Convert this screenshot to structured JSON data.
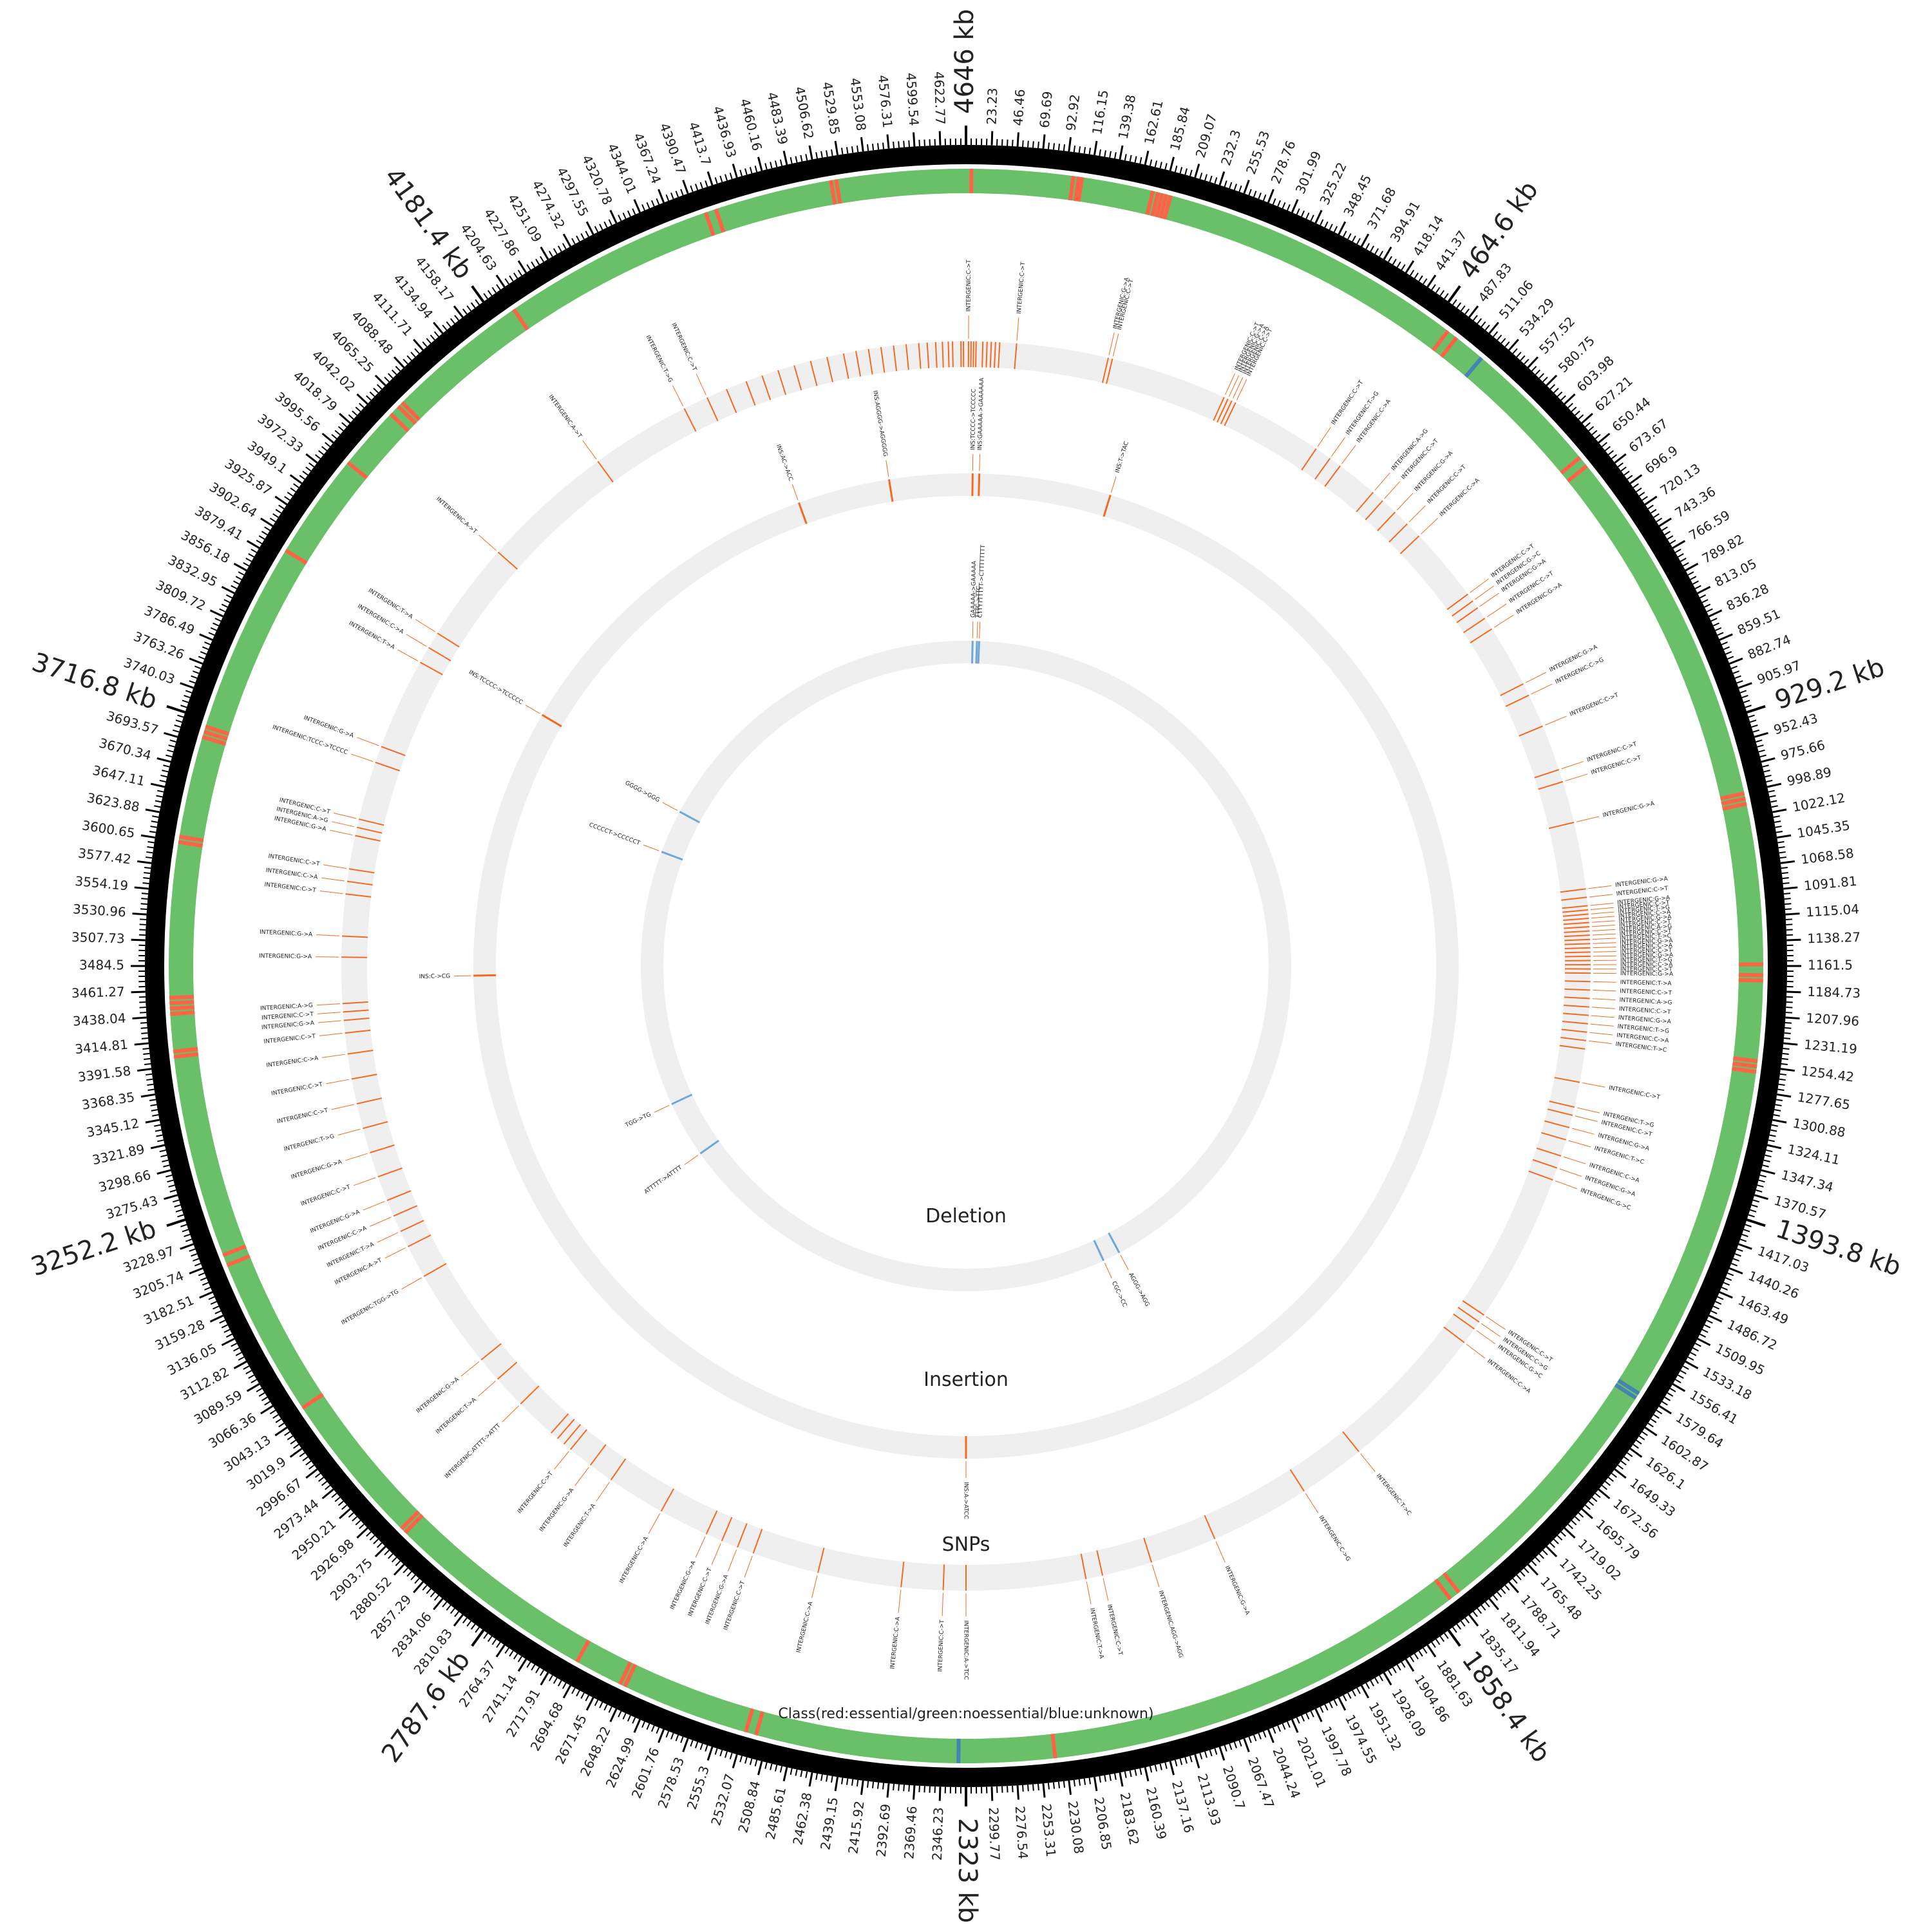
{
  "genome": {
    "length_kb": 4646,
    "major_ticks_kb": [
      "4646 kb",
      "464.6 kb",
      "929.2 kb",
      "1393.8 kb",
      "1858.4 kb",
      "2323 kb",
      "2787.6 kb",
      "3252.2 kb",
      "3716.8 kb",
      "4181.4 kb"
    ],
    "minor_tick_labels": [
      "23.23",
      "46.46",
      "69.69",
      "92.92",
      "116.15",
      "139.38",
      "162.61",
      "185.84",
      "209.07",
      "232.3",
      "255.53",
      "278.76",
      "301.99",
      "325.22",
      "348.45",
      "371.68",
      "394.91",
      "418.14",
      "441.37",
      "487.83",
      "511.06",
      "534.29",
      "557.52",
      "580.75",
      "603.98",
      "627.21",
      "650.44",
      "673.67",
      "696.9",
      "720.13",
      "743.36",
      "766.59",
      "789.82",
      "813.05",
      "836.28",
      "859.51",
      "882.74",
      "905.97",
      "952.43",
      "975.66",
      "998.89",
      "1022.12",
      "1045.35",
      "1068.58",
      "1091.81",
      "1115.04",
      "1138.27",
      "1161.5",
      "1184.73",
      "1207.96",
      "1231.19",
      "1254.42",
      "1277.65",
      "1300.88",
      "1324.11",
      "1347.34",
      "1370.57",
      "1417.03",
      "1440.26",
      "1463.49",
      "1486.72",
      "1509.95",
      "1533.18",
      "1556.41",
      "1579.64",
      "1602.87",
      "1626.1",
      "1649.33",
      "1672.56",
      "1695.79",
      "1719.02",
      "1742.25",
      "1765.48",
      "1788.71",
      "1811.94",
      "1835.17",
      "1881.63",
      "1904.86",
      "1928.09",
      "1951.32",
      "1974.55",
      "1997.78",
      "2021.01",
      "2044.24",
      "2067.47",
      "2090.7",
      "2113.93",
      "2137.16",
      "2160.39",
      "2183.62",
      "2206.85",
      "2230.08",
      "2253.31",
      "2276.54",
      "2299.77",
      "2346.23",
      "2369.46",
      "2392.69",
      "2415.92",
      "2439.15",
      "2462.38",
      "2485.61",
      "2508.84",
      "2532.07",
      "2555.3",
      "2578.53",
      "2601.76",
      "2624.99",
      "2648.22",
      "2671.45",
      "2694.68",
      "2717.91",
      "2741.14",
      "2764.37",
      "2810.83",
      "2834.06",
      "2857.29",
      "2880.52",
      "2903.75",
      "2926.98",
      "2950.21",
      "2973.44",
      "2996.67",
      "3019.9",
      "3043.13",
      "3066.36",
      "3089.59",
      "3112.82",
      "3136.05",
      "3159.28",
      "3182.51",
      "3205.74",
      "3228.97",
      "3275.43",
      "3298.66",
      "3321.89",
      "3345.12",
      "3368.35",
      "3391.58",
      "3414.81",
      "3438.04",
      "3461.27",
      "3484.5",
      "3507.73",
      "3530.96",
      "3554.19",
      "3577.42",
      "3600.65",
      "3623.88",
      "3647.11",
      "3670.34",
      "3693.57",
      "3740.03",
      "3763.26",
      "3786.49",
      "3809.72",
      "3832.95",
      "3856.18",
      "3879.41",
      "3902.64",
      "3925.87",
      "3949.1",
      "3972.33",
      "3995.56",
      "4018.79",
      "4042.02",
      "4065.25",
      "4088.48",
      "4111.71",
      "4134.94",
      "4158.17",
      "4204.63",
      "4227.86",
      "4251.09",
      "4274.32",
      "4297.55",
      "4320.78",
      "4344.01",
      "4367.24",
      "4390.47",
      "4413.7",
      "4436.93",
      "4460.16",
      "4483.39",
      "4506.62",
      "4529.85",
      "4553.08",
      "4576.31",
      "4599.54",
      "4622.77"
    ]
  },
  "tracks": {
    "class_label": "Class(red:essential/green:noessential/blue:unknown)",
    "snps_label": "SNPs",
    "insertion_label": "Insertion",
    "deletion_label": "Deletion"
  },
  "colors": {
    "essential": "#ff6347",
    "noessential": "#6abf69",
    "unknown": "#4682b4",
    "snp": "#f26b21",
    "insertion": "#f26b21",
    "deletion": "#6fa8d8",
    "track_bg": "#efefef",
    "ideogram": "#000000"
  },
  "class_features": {
    "essential_kb": [
      5,
      100,
      105,
      108,
      175,
      180,
      184,
      188,
      192,
      480,
      490,
      650,
      660,
      1000,
      1005,
      1010,
      1160,
      1170,
      1175,
      1250,
      1255,
      1260,
      1830,
      1840,
      2240,
      2520,
      2530,
      2650,
      2655,
      2700,
      2900,
      2905,
      3050,
      3200,
      3210,
      3400,
      3405,
      3440,
      3445,
      3450,
      3455,
      3600,
      3605,
      3700,
      3705,
      3710,
      3890,
      3990,
      4050,
      4060,
      4065,
      4200,
      4400,
      4410,
      4520,
      4525
    ],
    "unknown_kb": [
      520,
      1580,
      1585,
      2330
    ]
  },
  "snps": [
    {
      "pos": 4640,
      "label": ""
    },
    {
      "pos": 4643,
      "label": ""
    },
    {
      "pos": 3,
      "label": "INTERGENIC:C->T"
    },
    {
      "pos": 6,
      "label": ""
    },
    {
      "pos": 9,
      "label": ""
    },
    {
      "pos": 12,
      "label": ""
    },
    {
      "pos": 4630,
      "label": ""
    },
    {
      "pos": 4625,
      "label": ""
    },
    {
      "pos": 4618,
      "label": ""
    },
    {
      "pos": 4610,
      "label": ""
    },
    {
      "pos": 4600,
      "label": ""
    },
    {
      "pos": 4590,
      "label": ""
    },
    {
      "pos": 4575,
      "label": ""
    },
    {
      "pos": 4560,
      "label": ""
    },
    {
      "pos": 4545,
      "label": ""
    },
    {
      "pos": 4530,
      "label": ""
    },
    {
      "pos": 4515,
      "label": ""
    },
    {
      "pos": 4500,
      "label": ""
    },
    {
      "pos": 4480,
      "label": ""
    },
    {
      "pos": 4460,
      "label": ""
    },
    {
      "pos": 4440,
      "label": ""
    },
    {
      "pos": 4420,
      "label": ""
    },
    {
      "pos": 4400,
      "label": ""
    },
    {
      "pos": 4380,
      "label": ""
    },
    {
      "pos": 4355,
      "label": ""
    },
    {
      "pos": 4330,
      "label": "INTERGENIC:C->T"
    },
    {
      "pos": 4300,
      "label": "INTERGENIC:T->G"
    },
    {
      "pos": 4180,
      "label": "INTERGENIC:A->T"
    },
    {
      "pos": 4020,
      "label": "INTERGENIC:A->T"
    },
    {
      "pos": 3900,
      "label": "INTERGENIC:T->A"
    },
    {
      "pos": 3880,
      "label": "INTERGENIC:C->A"
    },
    {
      "pos": 3860,
      "label": "INTERGENIC:T->A"
    },
    {
      "pos": 3750,
      "label": "INTERGENIC:G->A"
    },
    {
      "pos": 3730,
      "label": "INTERGENIC:TCCC->TCCCC"
    },
    {
      "pos": 3660,
      "label": "INTERGENIC:C->T"
    },
    {
      "pos": 3650,
      "label": "INTERGENIC:A->G"
    },
    {
      "pos": 3640,
      "label": "INTERGENIC:G->A"
    },
    {
      "pos": 3600,
      "label": "INTERGENIC:C->T"
    },
    {
      "pos": 3585,
      "label": "INTERGENIC:C->A"
    },
    {
      "pos": 3570,
      "label": "INTERGENIC:C->T"
    },
    {
      "pos": 3520,
      "label": "INTERGENIC:G->A"
    },
    {
      "pos": 3495,
      "label": "INTERGENIC:G->A"
    },
    {
      "pos": 3440,
      "label": "INTERGENIC:A->G"
    },
    {
      "pos": 3430,
      "label": "INTERGENIC:C->T"
    },
    {
      "pos": 3420,
      "label": "INTERGENIC:G->A"
    },
    {
      "pos": 3405,
      "label": "INTERGENIC:C->T"
    },
    {
      "pos": 3380,
      "label": "INTERGENIC:C->A"
    },
    {
      "pos": 3350,
      "label": "INTERGENIC:C->T"
    },
    {
      "pos": 3320,
      "label": "INTERGENIC:C->T"
    },
    {
      "pos": 3290,
      "label": "INTERGENIC:T->G"
    },
    {
      "pos": 3260,
      "label": "INTERGENIC:G->A"
    },
    {
      "pos": 3230,
      "label": "INTERGENIC:C->T"
    },
    {
      "pos": 3200,
      "label": "INTERGENIC:G->A"
    },
    {
      "pos": 3180,
      "label": "INTERGENIC:C->A"
    },
    {
      "pos": 3160,
      "label": "INTERGENIC:T->A"
    },
    {
      "pos": 3140,
      "label": "INTERGENIC:A->T"
    },
    {
      "pos": 3100,
      "label": "INTERGENIC:TGG->TG"
    },
    {
      "pos": 2980,
      "label": "INTERGENIC:G->A"
    },
    {
      "pos": 2950,
      "label": "INTERGENIC:T->A"
    },
    {
      "pos": 2910,
      "label": "INTERGENIC:ATTTT->ATTT"
    },
    {
      "pos": 2860,
      "label": ""
    },
    {
      "pos": 2850,
      "label": ""
    },
    {
      "pos": 2840,
      "label": ""
    },
    {
      "pos": 2830,
      "label": "INTERGENIC:C->T"
    },
    {
      "pos": 2800,
      "label": "INTERGENIC:G->A"
    },
    {
      "pos": 2770,
      "label": "INTERGENIC:T->A"
    },
    {
      "pos": 2700,
      "label": "INTERGENIC:C->A"
    },
    {
      "pos": 2640,
      "label": "INTERGENIC:G->A"
    },
    {
      "pos": 2620,
      "label": "INTERGENIC:C->T"
    },
    {
      "pos": 2600,
      "label": "INTERGENIC:G->A"
    },
    {
      "pos": 2580,
      "label": "INTERGENIC:C->T"
    },
    {
      "pos": 2500,
      "label": "INTERGENIC:C->A"
    },
    {
      "pos": 2400,
      "label": "INTERGENIC:C->A"
    },
    {
      "pos": 2350,
      "label": "INTERGENIC:C->T"
    },
    {
      "pos": 2323,
      "label": "INTERGENIC:A->TCC"
    },
    {
      "pos": 2180,
      "label": "INTERGENIC:T->A"
    },
    {
      "pos": 2160,
      "label": "INTERGENIC:C->T"
    },
    {
      "pos": 2100,
      "label": "INTERGENIC:AGG->AGG"
    },
    {
      "pos": 2020,
      "label": "INTERGENIC:G->A"
    },
    {
      "pos": 1900,
      "label": "INTERGENIC:C->G"
    },
    {
      "pos": 1820,
      "label": "INTERGENIC:T->C"
    },
    {
      "pos": 1640,
      "label": "INTERGENIC:C->A"
    },
    {
      "pos": 1620,
      "label": "INTERGENIC:G->C"
    },
    {
      "pos": 1610,
      "label": "INTERGENIC:C->G"
    },
    {
      "pos": 1600,
      "label": "INTERGENIC:C->T"
    },
    {
      "pos": 1420,
      "label": "INTERGENIC:G->C"
    },
    {
      "pos": 1405,
      "label": "INTERGENIC:G->A"
    },
    {
      "pos": 1390,
      "label": "INTERGENIC:C->A"
    },
    {
      "pos": 1370,
      "label": "INTERGENIC:T->C"
    },
    {
      "pos": 1355,
      "label": "INTERGENIC:G->A"
    },
    {
      "pos": 1340,
      "label": "INTERGENIC:C->T"
    },
    {
      "pos": 1330,
      "label": "INTERGENIC:T->G"
    },
    {
      "pos": 1300,
      "label": "INTERGENIC:C->T"
    },
    {
      "pos": 1260,
      "label": ""
    },
    {
      "pos": 1250,
      "label": "INTERGENIC:T->C"
    },
    {
      "pos": 1240,
      "label": "INTERGENIC:C->A"
    },
    {
      "pos": 1230,
      "label": "INTERGENIC:T->G"
    },
    {
      "pos": 1220,
      "label": "INTERGENIC:G->A"
    },
    {
      "pos": 1210,
      "label": "INTERGENIC:C->T"
    },
    {
      "pos": 1200,
      "label": "INTERGENIC:A->G"
    },
    {
      "pos": 1190,
      "label": "INTERGENIC:C->T"
    },
    {
      "pos": 1180,
      "label": "INTERGENIC:T->A"
    },
    {
      "pos": 1170,
      "label": "INTERGENIC:G->A"
    },
    {
      "pos": 1165,
      "label": "INTERGENIC:C->T"
    },
    {
      "pos": 1160,
      "label": "INTERGENIC:C->A"
    },
    {
      "pos": 1155,
      "label": "INTERGENIC:T->G"
    },
    {
      "pos": 1150,
      "label": "INTERGENIC:G->A"
    },
    {
      "pos": 1145,
      "label": "INTERGENIC:C->T"
    },
    {
      "pos": 1140,
      "label": "INTERGENIC:C->A"
    },
    {
      "pos": 1135,
      "label": "INTERGENIC:G->A"
    },
    {
      "pos": 1130,
      "label": "INTERGENIC:T->C"
    },
    {
      "pos": 1125,
      "label": "INTERGENIC:C->T"
    },
    {
      "pos": 1120,
      "label": "INTERGENIC:A->G"
    },
    {
      "pos": 1115,
      "label": "INTERGENIC:C->T"
    },
    {
      "pos": 1110,
      "label": "INTERGENIC:G->A"
    },
    {
      "pos": 1105,
      "label": "INTERGENIC:C->A"
    },
    {
      "pos": 1100,
      "label": "INTERGENIC:T->G"
    },
    {
      "pos": 1095,
      "label": "INTERGENIC:C->T"
    },
    {
      "pos": 1090,
      "label": "INTERGENIC:G->A"
    },
    {
      "pos": 1080,
      "label": "INTERGENIC:C->T"
    },
    {
      "pos": 1070,
      "label": "INTERGENIC:G->A"
    },
    {
      "pos": 990,
      "label": "INTERGENIC:G->A"
    },
    {
      "pos": 940,
      "label": "INTERGENIC:C->T"
    },
    {
      "pos": 925,
      "label": "INTERGENIC:C->T"
    },
    {
      "pos": 870,
      "label": "INTERGENIC:C->T"
    },
    {
      "pos": 830,
      "label": "INTERGENIC:C->G"
    },
    {
      "pos": 815,
      "label": "INTERGENIC:G->A"
    },
    {
      "pos": 740,
      "label": "INTERGENIC:G->A"
    },
    {
      "pos": 725,
      "label": "INTERGENIC:C->T"
    },
    {
      "pos": 710,
      "label": "INTERGENIC:G->A"
    },
    {
      "pos": 700,
      "label": "INTERGENIC:G->C"
    },
    {
      "pos": 690,
      "label": "INTERGENIC:C->T"
    },
    {
      "pos": 600,
      "label": "INTERGENIC:C->A"
    },
    {
      "pos": 580,
      "label": "INTERGENIC:C->T"
    },
    {
      "pos": 560,
      "label": "INTERGENIC:G->A"
    },
    {
      "pos": 540,
      "label": "INTERGENIC:C->T"
    },
    {
      "pos": 525,
      "label": "INTERGENIC:A->G"
    },
    {
      "pos": 475,
      "label": "INTERGENIC:C->A"
    },
    {
      "pos": 460,
      "label": "INTERGENIC:T->G"
    },
    {
      "pos": 440,
      "label": "INTERGENIC:C->T"
    },
    {
      "pos": 330,
      "label": "INTERGENIC:C->T"
    },
    {
      "pos": 325,
      "label": "INTERGENIC:C->A"
    },
    {
      "pos": 320,
      "label": "INTERGENIC:G->A"
    },
    {
      "pos": 315,
      "label": "INTERGENIC:C->T"
    },
    {
      "pos": 175,
      "label": "INTERGENIC:C->T"
    },
    {
      "pos": 170,
      "label": "INTERGENIC:G->A"
    },
    {
      "pos": 60,
      "label": "INTERGENIC:C->T"
    },
    {
      "pos": 20,
      "label": ""
    },
    {
      "pos": 25,
      "label": ""
    },
    {
      "pos": 30,
      "label": ""
    },
    {
      "pos": 35,
      "label": ""
    },
    {
      "pos": 40,
      "label": ""
    }
  ],
  "insertions": [
    {
      "pos": 10,
      "label": "INS:TCCCC->TCCCCC"
    },
    {
      "pos": 20,
      "label": "INS:GAAAAA->GAAAAAA"
    },
    {
      "pos": 220,
      "label": "INS:T->TAC"
    },
    {
      "pos": 2323,
      "label": "INS:A->ATCC"
    },
    {
      "pos": 3470,
      "label": "INS:C->CG"
    },
    {
      "pos": 3880,
      "label": "INS:TCCCC->TCCCCC"
    },
    {
      "pos": 4390,
      "label": "INS:AC->ACC"
    },
    {
      "pos": 4530,
      "label": "INS:AGGGG->AGGGGG"
    }
  ],
  "deletions": [
    {
      "pos": 15,
      "label": "GAAAAA->GAAAAA"
    },
    {
      "pos": 30,
      "label": "CTTTTTTTTT->CTTTTTTTT"
    },
    {
      "pos": 25,
      "label": "TTTC->TTC"
    },
    {
      "pos": 3850,
      "label": "GGGG->GGG"
    },
    {
      "pos": 3750,
      "label": "CCCCCT->CCCCCT"
    },
    {
      "pos": 3160,
      "label": "TGG->TG"
    },
    {
      "pos": 3030,
      "label": "ATTTTT->ATTTT"
    },
    {
      "pos": 1960,
      "label": "AGGG->AGG"
    },
    {
      "pos": 2000,
      "label": "CGC->CC"
    }
  ]
}
